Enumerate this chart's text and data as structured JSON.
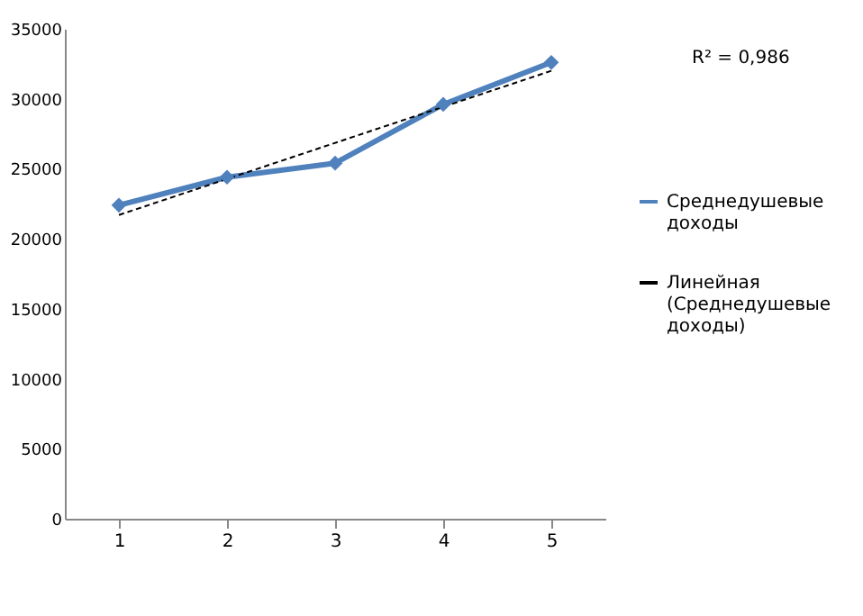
{
  "chart_data": {
    "type": "line",
    "x": [
      1,
      2,
      3,
      4,
      5
    ],
    "xlim": [
      0.5,
      5.5
    ],
    "xticks": [
      1,
      2,
      3,
      4,
      5
    ],
    "ylim": [
      0,
      35000
    ],
    "yticks": [
      0,
      5000,
      10000,
      15000,
      20000,
      25000,
      30000,
      35000
    ],
    "grid": false,
    "legend": "right",
    "marker": "diamond",
    "series": [
      {
        "name": "Среднедушевые доходы",
        "color": "#4f81bd",
        "values": [
          22400,
          24400,
          25400,
          29600,
          32600
        ],
        "line_style": "solid"
      },
      {
        "name": "Линейная (Среднедушевые доходы)",
        "color": "#000000",
        "type": "line",
        "x": [
          1,
          5
        ],
        "values": [
          21700,
          32000
        ],
        "line_style": "dashed",
        "marker": "none"
      }
    ],
    "annotations": [
      "R² = 0,986"
    ]
  }
}
